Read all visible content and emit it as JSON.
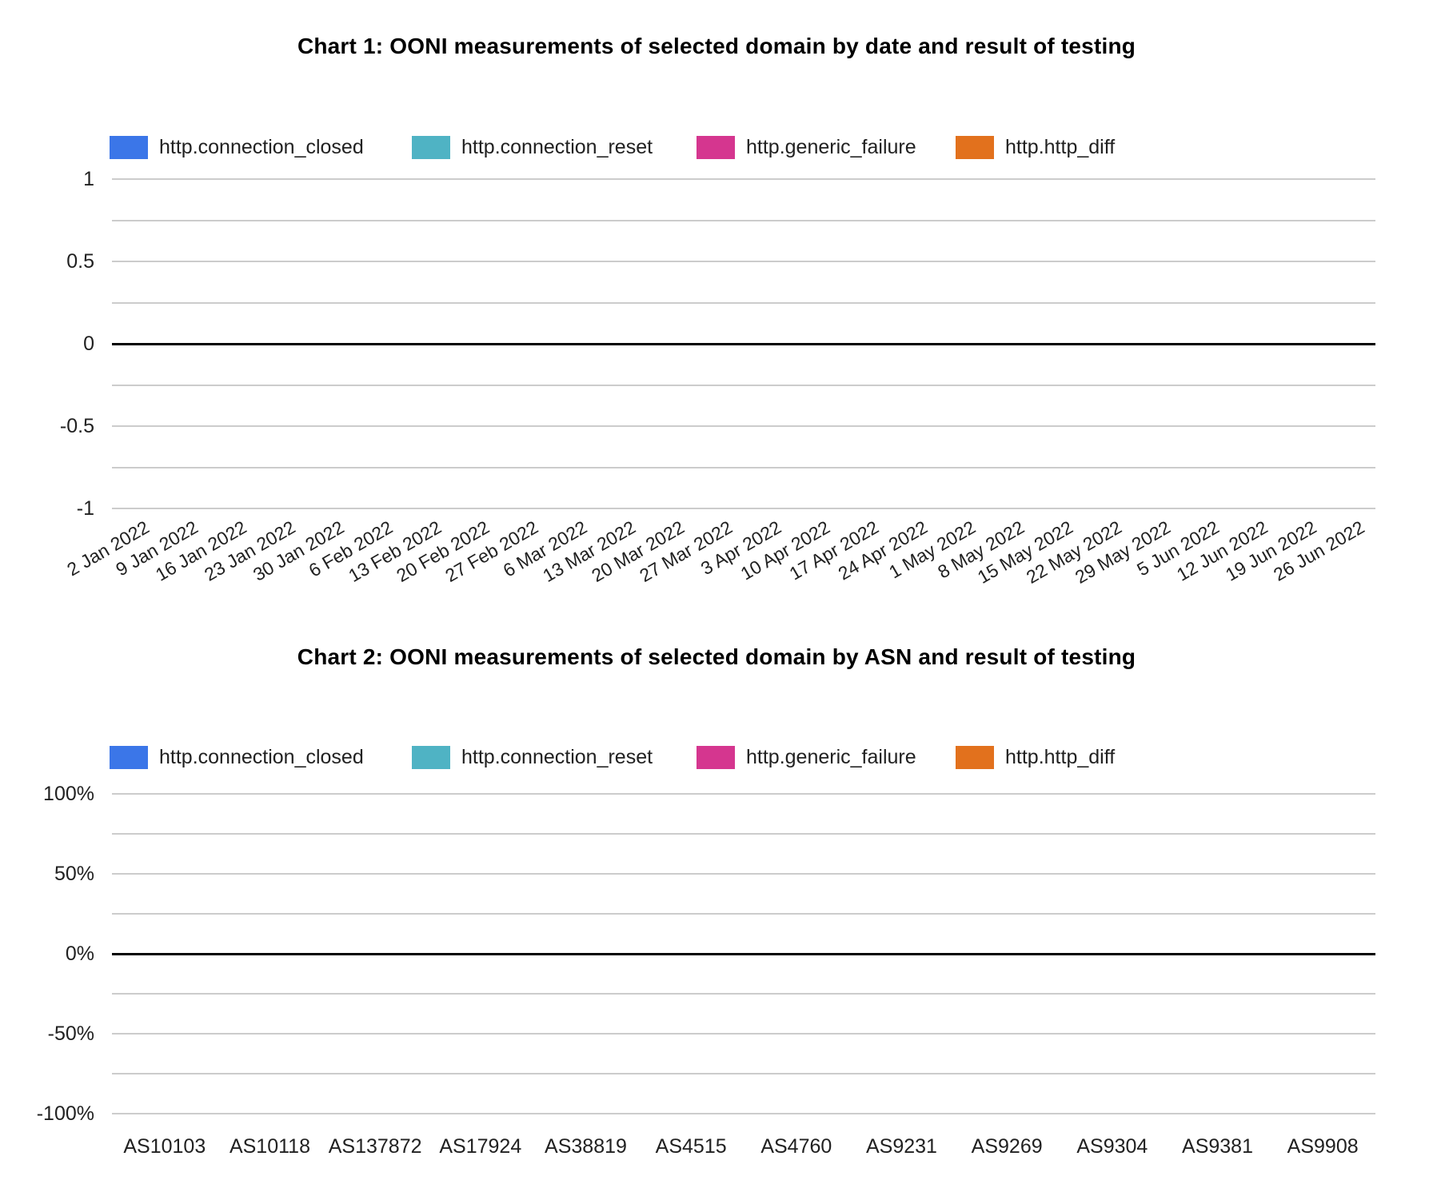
{
  "colors": {
    "background": "#ffffff",
    "gridline": "#cccccc",
    "zero_line": "#000000",
    "title_text": "#000000",
    "label_text": "#212121",
    "series_blue": "#3b76e8",
    "series_teal": "#4fb3c4",
    "series_magenta": "#d5368f",
    "series_orange": "#e2711d"
  },
  "chart1": {
    "title": "Chart 1: OONI measurements of selected domain by date and result of testing",
    "legend": [
      {
        "label": "http.connection_closed",
        "color": "#3b76e8"
      },
      {
        "label": "http.connection_reset",
        "color": "#4fb3c4"
      },
      {
        "label": "http.generic_failure",
        "color": "#d5368f"
      },
      {
        "label": "http.http_diff",
        "color": "#e2711d"
      }
    ],
    "y_tick_labels": [
      "1",
      "0.5",
      "0",
      "-0.5",
      "-1"
    ],
    "x_tick_labels": [
      "2 Jan 2022",
      "9 Jan 2022",
      "16 Jan 2022",
      "23 Jan 2022",
      "30 Jan 2022",
      "6 Feb 2022",
      "13 Feb 2022",
      "20 Feb 2022",
      "27 Feb 2022",
      "6 Mar 2022",
      "13 Mar 2022",
      "20 Mar 2022",
      "27 Mar 2022",
      "3 Apr 2022",
      "10 Apr 2022",
      "17 Apr 2022",
      "24 Apr 2022",
      "1 May 2022",
      "8 May 2022",
      "15 May 2022",
      "22 May 2022",
      "29 May 2022",
      "5 Jun 2022",
      "12 Jun 2022",
      "19 Jun 2022",
      "26 Jun 2022"
    ]
  },
  "chart2": {
    "title": "Chart 2: OONI measurements of selected domain by ASN and result of testing",
    "legend": [
      {
        "label": "http.connection_closed",
        "color": "#3b76e8"
      },
      {
        "label": "http.connection_reset",
        "color": "#4fb3c4"
      },
      {
        "label": "http.generic_failure",
        "color": "#d5368f"
      },
      {
        "label": "http.http_diff",
        "color": "#e2711d"
      }
    ],
    "y_tick_labels": [
      "100%",
      "50%",
      "0%",
      "-50%",
      "-100%"
    ],
    "x_tick_labels": [
      "AS10103",
      "AS10118",
      "AS137872",
      "AS17924",
      "AS38819",
      "AS4515",
      "AS4760",
      "AS9231",
      "AS9269",
      "AS9304",
      "AS9381",
      "AS9908"
    ]
  },
  "chart_data": [
    {
      "type": "bar",
      "title": "Chart 1: OONI measurements of selected domain by date and result of testing",
      "categories": [
        "2 Jan 2022",
        "9 Jan 2022",
        "16 Jan 2022",
        "23 Jan 2022",
        "30 Jan 2022",
        "6 Feb 2022",
        "13 Feb 2022",
        "20 Feb 2022",
        "27 Feb 2022",
        "6 Mar 2022",
        "13 Mar 2022",
        "20 Mar 2022",
        "27 Mar 2022",
        "3 Apr 2022",
        "10 Apr 2022",
        "17 Apr 2022",
        "24 Apr 2022",
        "1 May 2022",
        "8 May 2022",
        "15 May 2022",
        "22 May 2022",
        "29 May 2022",
        "5 Jun 2022",
        "12 Jun 2022",
        "19 Jun 2022",
        "26 Jun 2022"
      ],
      "series": [
        {
          "name": "http.connection_closed",
          "color": "#3b76e8",
          "values": []
        },
        {
          "name": "http.connection_reset",
          "color": "#4fb3c4",
          "values": []
        },
        {
          "name": "http.generic_failure",
          "color": "#d5368f",
          "values": []
        },
        {
          "name": "http.http_diff",
          "color": "#e2711d",
          "values": []
        }
      ],
      "xlabel": "",
      "ylabel": "",
      "ylim": [
        -1,
        1
      ],
      "y_ticks": [
        1,
        0.5,
        0,
        -0.5,
        -1
      ],
      "grid": true,
      "legend_position": "top",
      "note": "plot area is empty - no bars rendered for any series"
    },
    {
      "type": "bar",
      "title": "Chart 2: OONI measurements of selected domain by ASN and result of testing",
      "categories": [
        "AS10103",
        "AS10118",
        "AS137872",
        "AS17924",
        "AS38819",
        "AS4515",
        "AS4760",
        "AS9231",
        "AS9269",
        "AS9304",
        "AS9381",
        "AS9908"
      ],
      "series": [
        {
          "name": "http.connection_closed",
          "color": "#3b76e8",
          "values": []
        },
        {
          "name": "http.connection_reset",
          "color": "#4fb3c4",
          "values": []
        },
        {
          "name": "http.generic_failure",
          "color": "#d5368f",
          "values": []
        },
        {
          "name": "http.http_diff",
          "color": "#e2711d",
          "values": []
        }
      ],
      "xlabel": "",
      "ylabel": "",
      "ylim": [
        "-100%",
        "100%"
      ],
      "y_ticks": [
        "100%",
        "50%",
        "0%",
        "-50%",
        "-100%"
      ],
      "grid": true,
      "legend_position": "top",
      "note": "plot area is empty - no bars rendered for any series"
    }
  ]
}
